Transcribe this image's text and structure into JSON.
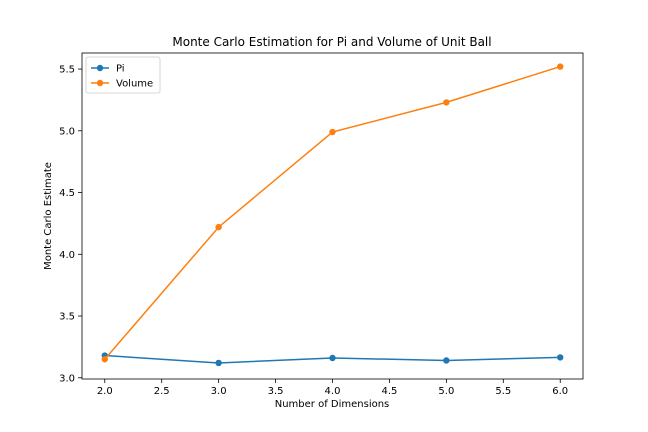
{
  "chart_data": {
    "type": "line",
    "title": "Monte Carlo Estimation for Pi and Volume of Unit Ball",
    "xlabel": "Number of Dimensions",
    "ylabel": "Monte Carlo Estimate",
    "xlim": [
      1.8,
      6.2
    ],
    "ylim": [
      2.99,
      5.63
    ],
    "xticks": [
      2.0,
      2.5,
      3.0,
      3.5,
      4.0,
      4.5,
      5.0,
      5.5,
      6.0
    ],
    "xtick_labels": [
      "2.0",
      "2.5",
      "3.0",
      "3.5",
      "4.0",
      "4.5",
      "5.0",
      "5.5",
      "6.0"
    ],
    "yticks": [
      3.0,
      3.5,
      4.0,
      4.5,
      5.0,
      5.5
    ],
    "ytick_labels": [
      "3.0",
      "3.5",
      "4.0",
      "4.5",
      "5.0",
      "5.5"
    ],
    "grid": false,
    "legend_position": "top-left",
    "x": [
      2,
      3,
      4,
      5,
      6
    ],
    "series": [
      {
        "name": "Pi",
        "color": "#1f77b4",
        "values": [
          3.18,
          3.12,
          3.16,
          3.14,
          3.165
        ]
      },
      {
        "name": "Volume",
        "color": "#ff7f0e",
        "values": [
          3.15,
          4.22,
          4.99,
          5.23,
          5.52
        ]
      }
    ]
  }
}
